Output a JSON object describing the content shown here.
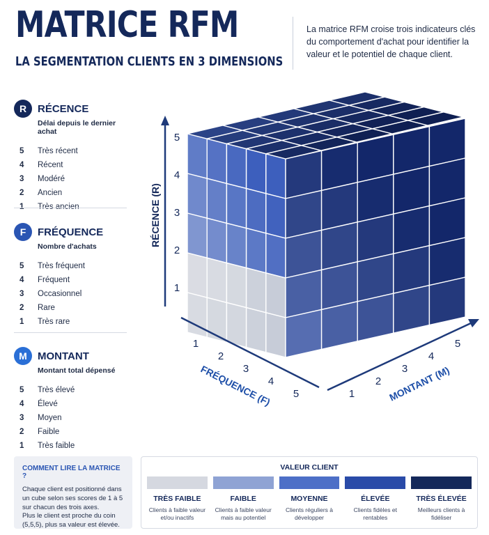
{
  "header": {
    "title": "MATRICE RFM",
    "subtitle": "LA SEGMENTATION CLIENTS EN 3 DIMENSIONS",
    "intro": "La matrice RFM croise trois indicateurs clés du comportement d'achat pour identifier la valeur et le potentiel de chaque client."
  },
  "dimensions": [
    {
      "badge": "R",
      "title": "RÉCENCE",
      "subtitle": "Délai depuis le dernier achat",
      "items": [
        {
          "num": "5",
          "label": "Très récent"
        },
        {
          "num": "4",
          "label": "Récent"
        },
        {
          "num": "3",
          "label": "Modéré"
        },
        {
          "num": "2",
          "label": "Ancien"
        },
        {
          "num": "1",
          "label": "Très ancien"
        }
      ]
    },
    {
      "badge": "F",
      "title": "FRÉQUENCE",
      "subtitle": "Nombre d'achats",
      "items": [
        {
          "num": "5",
          "label": "Très fréquent"
        },
        {
          "num": "4",
          "label": "Fréquent"
        },
        {
          "num": "3",
          "label": "Occasionnel"
        },
        {
          "num": "2",
          "label": "Rare"
        },
        {
          "num": "1",
          "label": "Très rare"
        }
      ]
    },
    {
      "badge": "M",
      "title": "MONTANT",
      "subtitle": "Montant total dépensé",
      "items": [
        {
          "num": "5",
          "label": "Très élevé"
        },
        {
          "num": "4",
          "label": "Élevé"
        },
        {
          "num": "3",
          "label": "Moyen"
        },
        {
          "num": "2",
          "label": "Faible"
        },
        {
          "num": "1",
          "label": "Très faible"
        }
      ]
    }
  ],
  "cube": {
    "axis_r_label": "RÉCENCE (R)",
    "axis_f_label": "FRÉQUENCE (F)",
    "axis_m_label": "MONTANT (M)",
    "r_ticks": [
      "1",
      "2",
      "3",
      "4",
      "5"
    ],
    "f_ticks": [
      "1",
      "2",
      "3",
      "4",
      "5"
    ],
    "m_ticks": [
      "1",
      "2",
      "3",
      "4",
      "5"
    ]
  },
  "howto": {
    "title": "COMMENT LIRE LA MATRICE ?",
    "text1": "Chaque client est positionné dans un cube selon ses scores de 1 à 5 sur chacun des trois axes.",
    "text2": "Plus le client est proche du coin (5,5,5), plus sa valeur est élevée."
  },
  "legend": {
    "title": "VALEUR CLIENT",
    "items": [
      {
        "label": "TRÈS FAIBLE",
        "desc": "Clients à faible valeur et/ou inactifs",
        "color": "#d5d8e0"
      },
      {
        "label": "FAIBLE",
        "desc": "Clients à faible valeur mais au potentiel",
        "color": "#8fa3d4"
      },
      {
        "label": "MOYENNE",
        "desc": "Clients réguliers à développer",
        "color": "#4d6fc7"
      },
      {
        "label": "ÉLEVÉE",
        "desc": "Clients fidèles et rentables",
        "color": "#2a4ba8"
      },
      {
        "label": "TRÈS ÉLEVÉE",
        "desc": "Meilleurs clients à fidéliser",
        "color": "#14285a"
      }
    ]
  },
  "colors": {
    "navy": "#14285a",
    "badge": "#2a55b3",
    "axis": "#1e3a7a"
  }
}
